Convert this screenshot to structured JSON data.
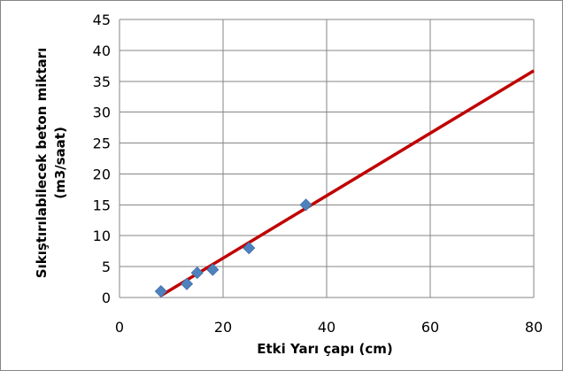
{
  "chart_data": {
    "type": "scatter",
    "xlabel": "Etki Yarı çapı (cm)",
    "ylabel_line1": "Sıkıştırılabilecek beton miktarı",
    "ylabel_line2": "(m3/saat)",
    "xlim": [
      0,
      80
    ],
    "ylim": [
      0,
      45
    ],
    "x_ticks": [
      0,
      20,
      40,
      60,
      80
    ],
    "y_ticks": [
      0,
      5,
      10,
      15,
      20,
      25,
      30,
      35,
      40,
      45
    ],
    "grid": true,
    "legend": "none",
    "points": {
      "x": [
        8,
        13,
        15,
        18,
        25,
        36
      ],
      "y": [
        1,
        2.2,
        4,
        4.5,
        8,
        15
      ]
    },
    "trendline": {
      "type": "linear",
      "x": [
        8,
        80
      ],
      "y": [
        0.3,
        36.7
      ]
    },
    "colors": {
      "points": "#4F81BD",
      "trendline": "#C00000",
      "grid": "#868686"
    }
  }
}
